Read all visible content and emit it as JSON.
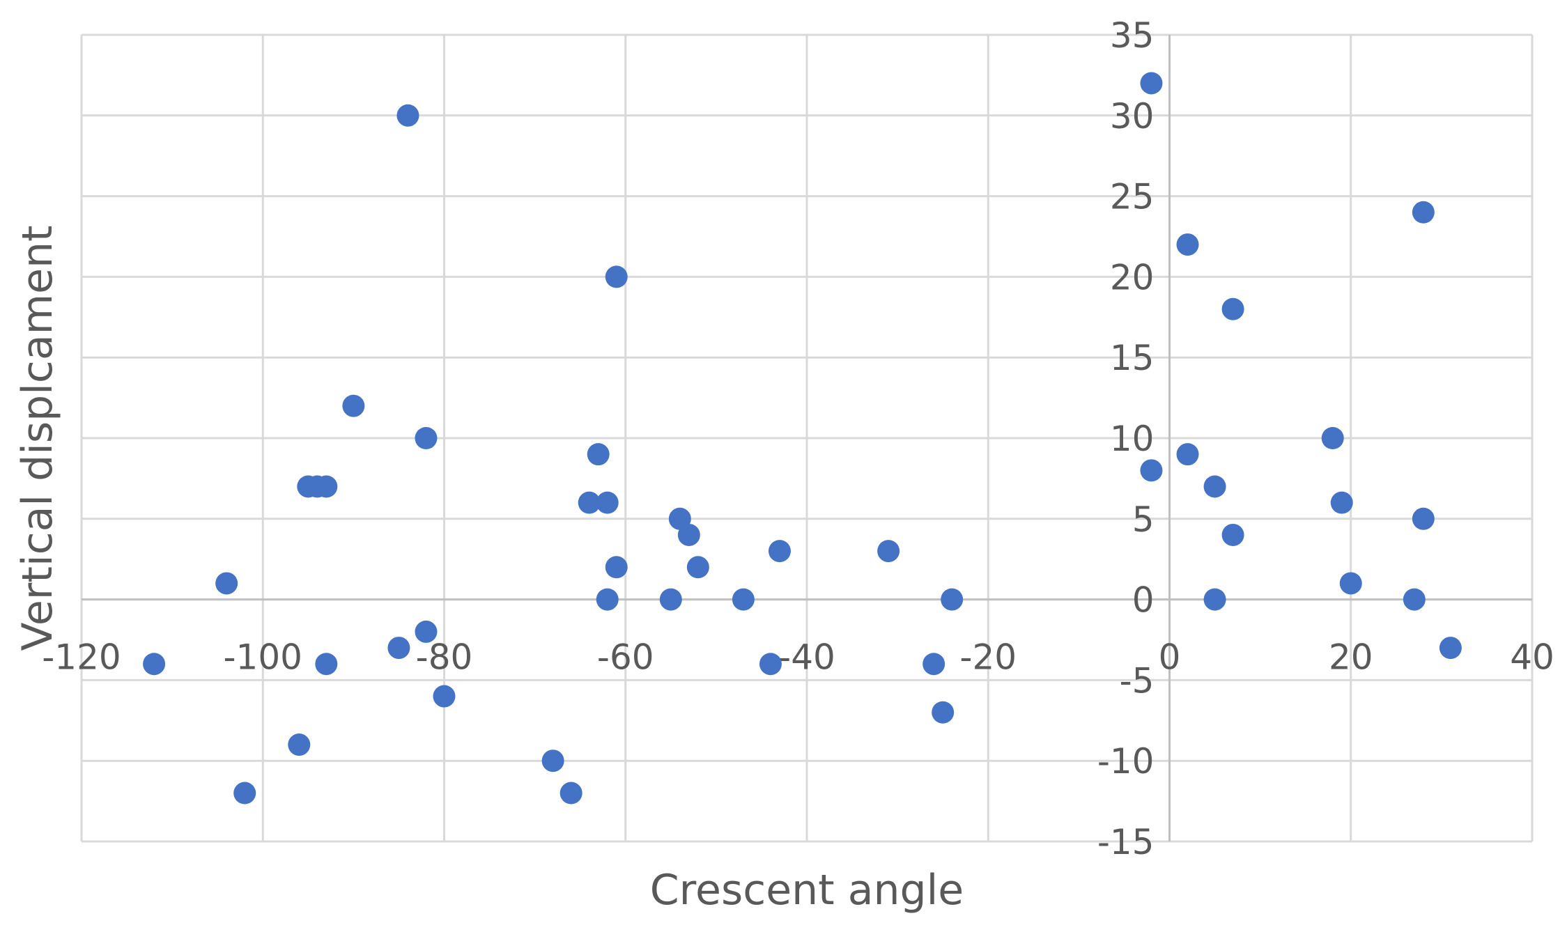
{
  "chart_data": {
    "type": "scatter",
    "title": "",
    "xlabel": "Crescent angle",
    "ylabel": "Vertical displcament",
    "xlim": [
      -120,
      40
    ],
    "ylim": [
      -15,
      35
    ],
    "x_ticks": [
      -120,
      -100,
      -80,
      -60,
      -40,
      -20,
      0,
      20,
      40
    ],
    "y_ticks": [
      -15,
      -10,
      -5,
      0,
      5,
      10,
      15,
      20,
      25,
      30,
      35
    ],
    "x_tick_labels": [
      "-120",
      "-100",
      "-80",
      "-60",
      "-40",
      "-20",
      "0",
      "20",
      "40"
    ],
    "y_tick_labels": [
      "-15",
      "-10",
      "-5",
      "0",
      "5",
      "10",
      "15",
      "20",
      "25",
      "30",
      "35"
    ],
    "grid": true,
    "legend": "none",
    "marker_color": "#4472c4",
    "points": [
      {
        "x": -112,
        "y": -4
      },
      {
        "x": -104,
        "y": 1
      },
      {
        "x": -102,
        "y": -12
      },
      {
        "x": -96,
        "y": -9
      },
      {
        "x": -95,
        "y": 7
      },
      {
        "x": -94,
        "y": 7
      },
      {
        "x": -93,
        "y": 7
      },
      {
        "x": -93,
        "y": -4
      },
      {
        "x": -90,
        "y": 12
      },
      {
        "x": -85,
        "y": -3
      },
      {
        "x": -84,
        "y": 30
      },
      {
        "x": -82,
        "y": 10
      },
      {
        "x": -82,
        "y": -2
      },
      {
        "x": -80,
        "y": -6
      },
      {
        "x": -68,
        "y": -10
      },
      {
        "x": -66,
        "y": -12
      },
      {
        "x": -64,
        "y": 6
      },
      {
        "x": -63,
        "y": 9
      },
      {
        "x": -62,
        "y": 6
      },
      {
        "x": -62,
        "y": 0
      },
      {
        "x": -61,
        "y": 20
      },
      {
        "x": -61,
        "y": 2
      },
      {
        "x": -55,
        "y": 0
      },
      {
        "x": -54,
        "y": 5
      },
      {
        "x": -53,
        "y": 4
      },
      {
        "x": -52,
        "y": 2
      },
      {
        "x": -47,
        "y": 0
      },
      {
        "x": -44,
        "y": -4
      },
      {
        "x": -43,
        "y": 3
      },
      {
        "x": -31,
        "y": 3
      },
      {
        "x": -26,
        "y": -4
      },
      {
        "x": -25,
        "y": -7
      },
      {
        "x": -24,
        "y": 0
      },
      {
        "x": -2,
        "y": 32
      },
      {
        "x": -2,
        "y": 8
      },
      {
        "x": 2,
        "y": 22
      },
      {
        "x": 2,
        "y": 9
      },
      {
        "x": 5,
        "y": 7
      },
      {
        "x": 5,
        "y": 0
      },
      {
        "x": 7,
        "y": 18
      },
      {
        "x": 7,
        "y": 4
      },
      {
        "x": 18,
        "y": 10
      },
      {
        "x": 19,
        "y": 6
      },
      {
        "x": 20,
        "y": 1
      },
      {
        "x": 27,
        "y": 0
      },
      {
        "x": 28,
        "y": 24
      },
      {
        "x": 28,
        "y": 5
      },
      {
        "x": 31,
        "y": -3
      }
    ]
  }
}
